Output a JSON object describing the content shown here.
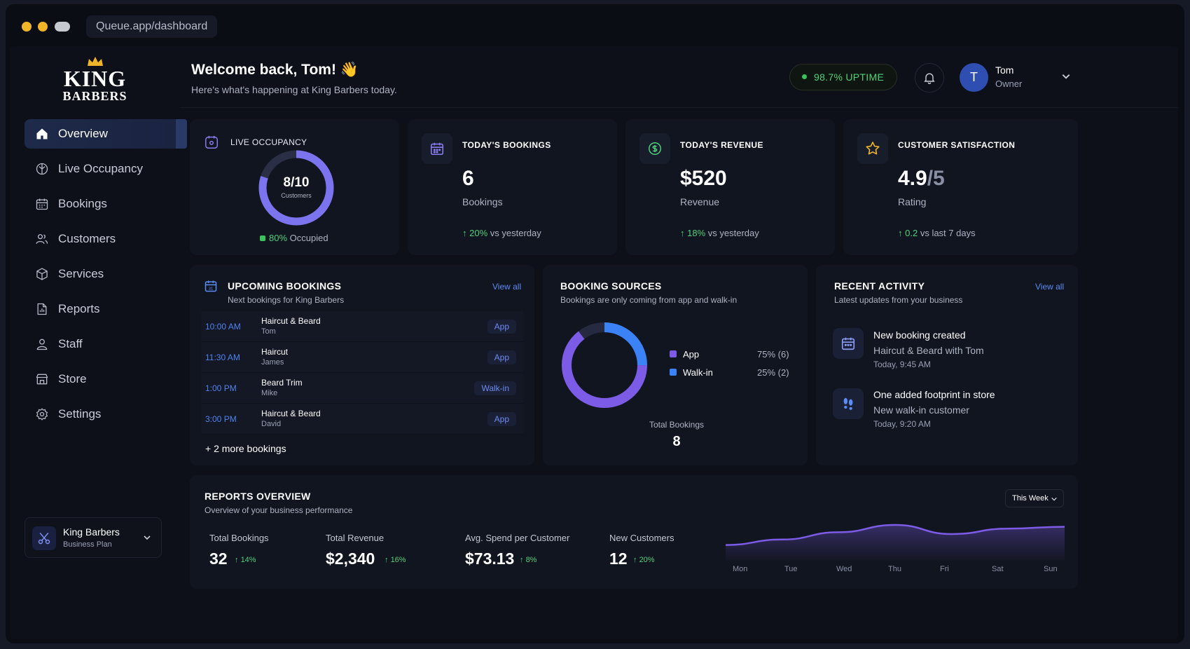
{
  "browser": {
    "url": "Queue.app/dashboard"
  },
  "brand": {
    "line1": "KING",
    "line2": "BARBERS"
  },
  "nav": [
    {
      "label": "Overview",
      "icon": "home-icon",
      "active": true
    },
    {
      "label": "Live Occupancy",
      "icon": "occupancy-icon"
    },
    {
      "label": "Bookings",
      "icon": "calendar-icon"
    },
    {
      "label": "Customers",
      "icon": "users-icon"
    },
    {
      "label": "Services",
      "icon": "box-icon"
    },
    {
      "label": "Reports",
      "icon": "report-icon"
    },
    {
      "label": "Staff",
      "icon": "user-icon"
    },
    {
      "label": "Store",
      "icon": "store-icon"
    },
    {
      "label": "Settings",
      "icon": "gear-icon"
    }
  ],
  "business": {
    "name": "King Barbers",
    "plan": "Business Plan"
  },
  "header": {
    "welcome": "Welcome back, Tom! 👋",
    "subtitle": "Here's what's happening at King Barbers today.",
    "uptime": "98.7% UPTIME",
    "user_initial": "T",
    "user_name": "Tom",
    "user_role": "Owner"
  },
  "occupancy": {
    "title": "LIVE OCCUPANCY",
    "value": "8/10",
    "caption": "Customers",
    "percent": 80,
    "pct_text": "80%",
    "status": "Occupied"
  },
  "stats": [
    {
      "title": "TODAY'S BOOKINGS",
      "value": "6",
      "label": "Bookings",
      "change": "20%",
      "compare": "vs yesterday",
      "icon": "calendar-icon"
    },
    {
      "title": "TODAY'S REVENUE",
      "value": "$520",
      "label": "Revenue",
      "change": "18%",
      "compare": "vs yesterday",
      "icon": "dollar-icon"
    },
    {
      "title": "CUSTOMER SATISFACTION",
      "value": "4.9",
      "value_suffix": "/5",
      "label": "Rating",
      "change": "0.2",
      "compare": "vs last 7 days",
      "icon": "star-icon"
    }
  ],
  "upcoming": {
    "title": "UPCOMING BOOKINGS",
    "subtitle": "Next bookings for King Barbers",
    "view_all": "View all",
    "rows": [
      {
        "time": "10:00 AM",
        "service": "Haircut & Beard",
        "customer": "Tom",
        "source": "App"
      },
      {
        "time": "11:30 AM",
        "service": "Haircut",
        "customer": "James",
        "source": "App"
      },
      {
        "time": "1:00 PM",
        "service": "Beard Trim",
        "customer": "Mike",
        "source": "Walk-in"
      },
      {
        "time": "3:00 PM",
        "service": "Haircut & Beard",
        "customer": "David",
        "source": "App"
      }
    ],
    "more": "+ 2 more bookings"
  },
  "sources": {
    "title": "BOOKING SOURCES",
    "subtitle": "Bookings are only coming from app and walk-in",
    "items": [
      {
        "name": "App",
        "value": "75% (6)",
        "share": 0.75,
        "color": "#7c5ce6"
      },
      {
        "name": "Walk-in",
        "value": "25% (2)",
        "share": 0.25,
        "color": "#3b82f6"
      }
    ],
    "total_label": "Total Bookings",
    "total": "8"
  },
  "activity": {
    "title": "RECENT ACTIVITY",
    "subtitle": "Latest updates from your business",
    "view_all": "View all",
    "items": [
      {
        "title": "New booking created",
        "detail": "Haircut & Beard with Tom",
        "time": "Today, 9:45 AM",
        "icon": "calendar-icon"
      },
      {
        "title": "One added footprint in store",
        "detail": "New walk-in customer",
        "time": "Today, 9:20 AM",
        "icon": "footprint-icon"
      }
    ]
  },
  "reports": {
    "title": "REPORTS OVERVIEW",
    "subtitle": "Overview of your business performance",
    "period": "This Week",
    "metrics": [
      {
        "label": "Total Bookings",
        "value": "32",
        "change": "14%"
      },
      {
        "label": "Total Revenue",
        "value": "$2,340",
        "change": "16%"
      },
      {
        "label": "Avg. Spend per Customer",
        "value": "$73.13",
        "change": "8%"
      },
      {
        "label": "New Customers",
        "value": "12",
        "change": "20%"
      }
    ]
  },
  "chart_data": {
    "type": "area",
    "categories": [
      "Mon",
      "Tue",
      "Wed",
      "Thu",
      "Fri",
      "Sat",
      "Sun"
    ],
    "series": [
      {
        "values": [
          2,
          3.5,
          5.5,
          7.5,
          5,
          6.5,
          7
        ]
      }
    ],
    "ylim": [
      0,
      10
    ],
    "grid": false,
    "color": "#7c5ce6"
  },
  "colors": {
    "accent": "#7c5ce6",
    "blue": "#3b82f6",
    "green": "#4fd17a"
  }
}
